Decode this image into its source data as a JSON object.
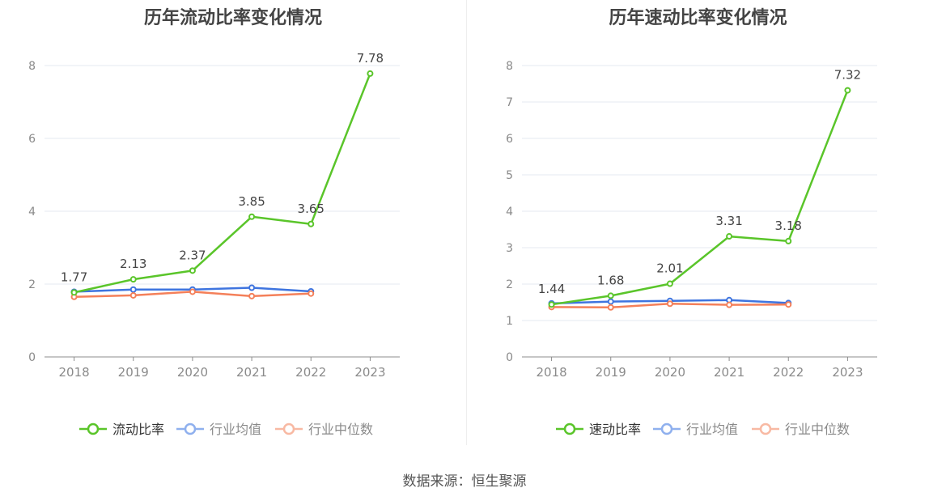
{
  "source_text": "数据来源：恒生聚源",
  "chart_data": [
    {
      "type": "line",
      "title": "历年流动比率变化情况",
      "categories": [
        "2018",
        "2019",
        "2020",
        "2021",
        "2022",
        "2023"
      ],
      "ylim": [
        0,
        8
      ],
      "yticks": [
        "0",
        "2",
        "4",
        "6",
        "8"
      ],
      "grid": true,
      "legend_position": "bottom",
      "series": [
        {
          "name": "流动比率",
          "color": "#5ac52a",
          "values": [
            1.77,
            2.13,
            2.37,
            3.85,
            3.65,
            7.78
          ],
          "labels": [
            "1.77",
            "2.13",
            "2.37",
            "3.85",
            "3.65",
            "7.78"
          ]
        },
        {
          "name": "行业均值",
          "color": "#3e74df",
          "values": [
            1.79,
            1.85,
            1.85,
            1.9,
            1.8,
            null
          ]
        },
        {
          "name": "行业中位数",
          "color": "#f4805a",
          "values": [
            1.65,
            1.69,
            1.79,
            1.67,
            1.74,
            null
          ]
        }
      ]
    },
    {
      "type": "line",
      "title": "历年速动比率变化情况",
      "categories": [
        "2018",
        "2019",
        "2020",
        "2021",
        "2022",
        "2023"
      ],
      "ylim": [
        0,
        8
      ],
      "yticks": [
        "0",
        "1",
        "2",
        "3",
        "4",
        "5",
        "6",
        "7",
        "8"
      ],
      "grid": true,
      "legend_position": "bottom",
      "series": [
        {
          "name": "速动比率",
          "color": "#5ac52a",
          "values": [
            1.44,
            1.68,
            2.01,
            3.31,
            3.18,
            7.32
          ],
          "labels": [
            "1.44",
            "1.68",
            "2.01",
            "3.31",
            "3.18",
            "7.32"
          ]
        },
        {
          "name": "行业均值",
          "color": "#3e74df",
          "values": [
            1.47,
            1.52,
            1.54,
            1.56,
            1.48,
            null
          ]
        },
        {
          "name": "行业中位数",
          "color": "#f4805a",
          "values": [
            1.37,
            1.36,
            1.46,
            1.43,
            1.44,
            null
          ]
        }
      ]
    }
  ]
}
